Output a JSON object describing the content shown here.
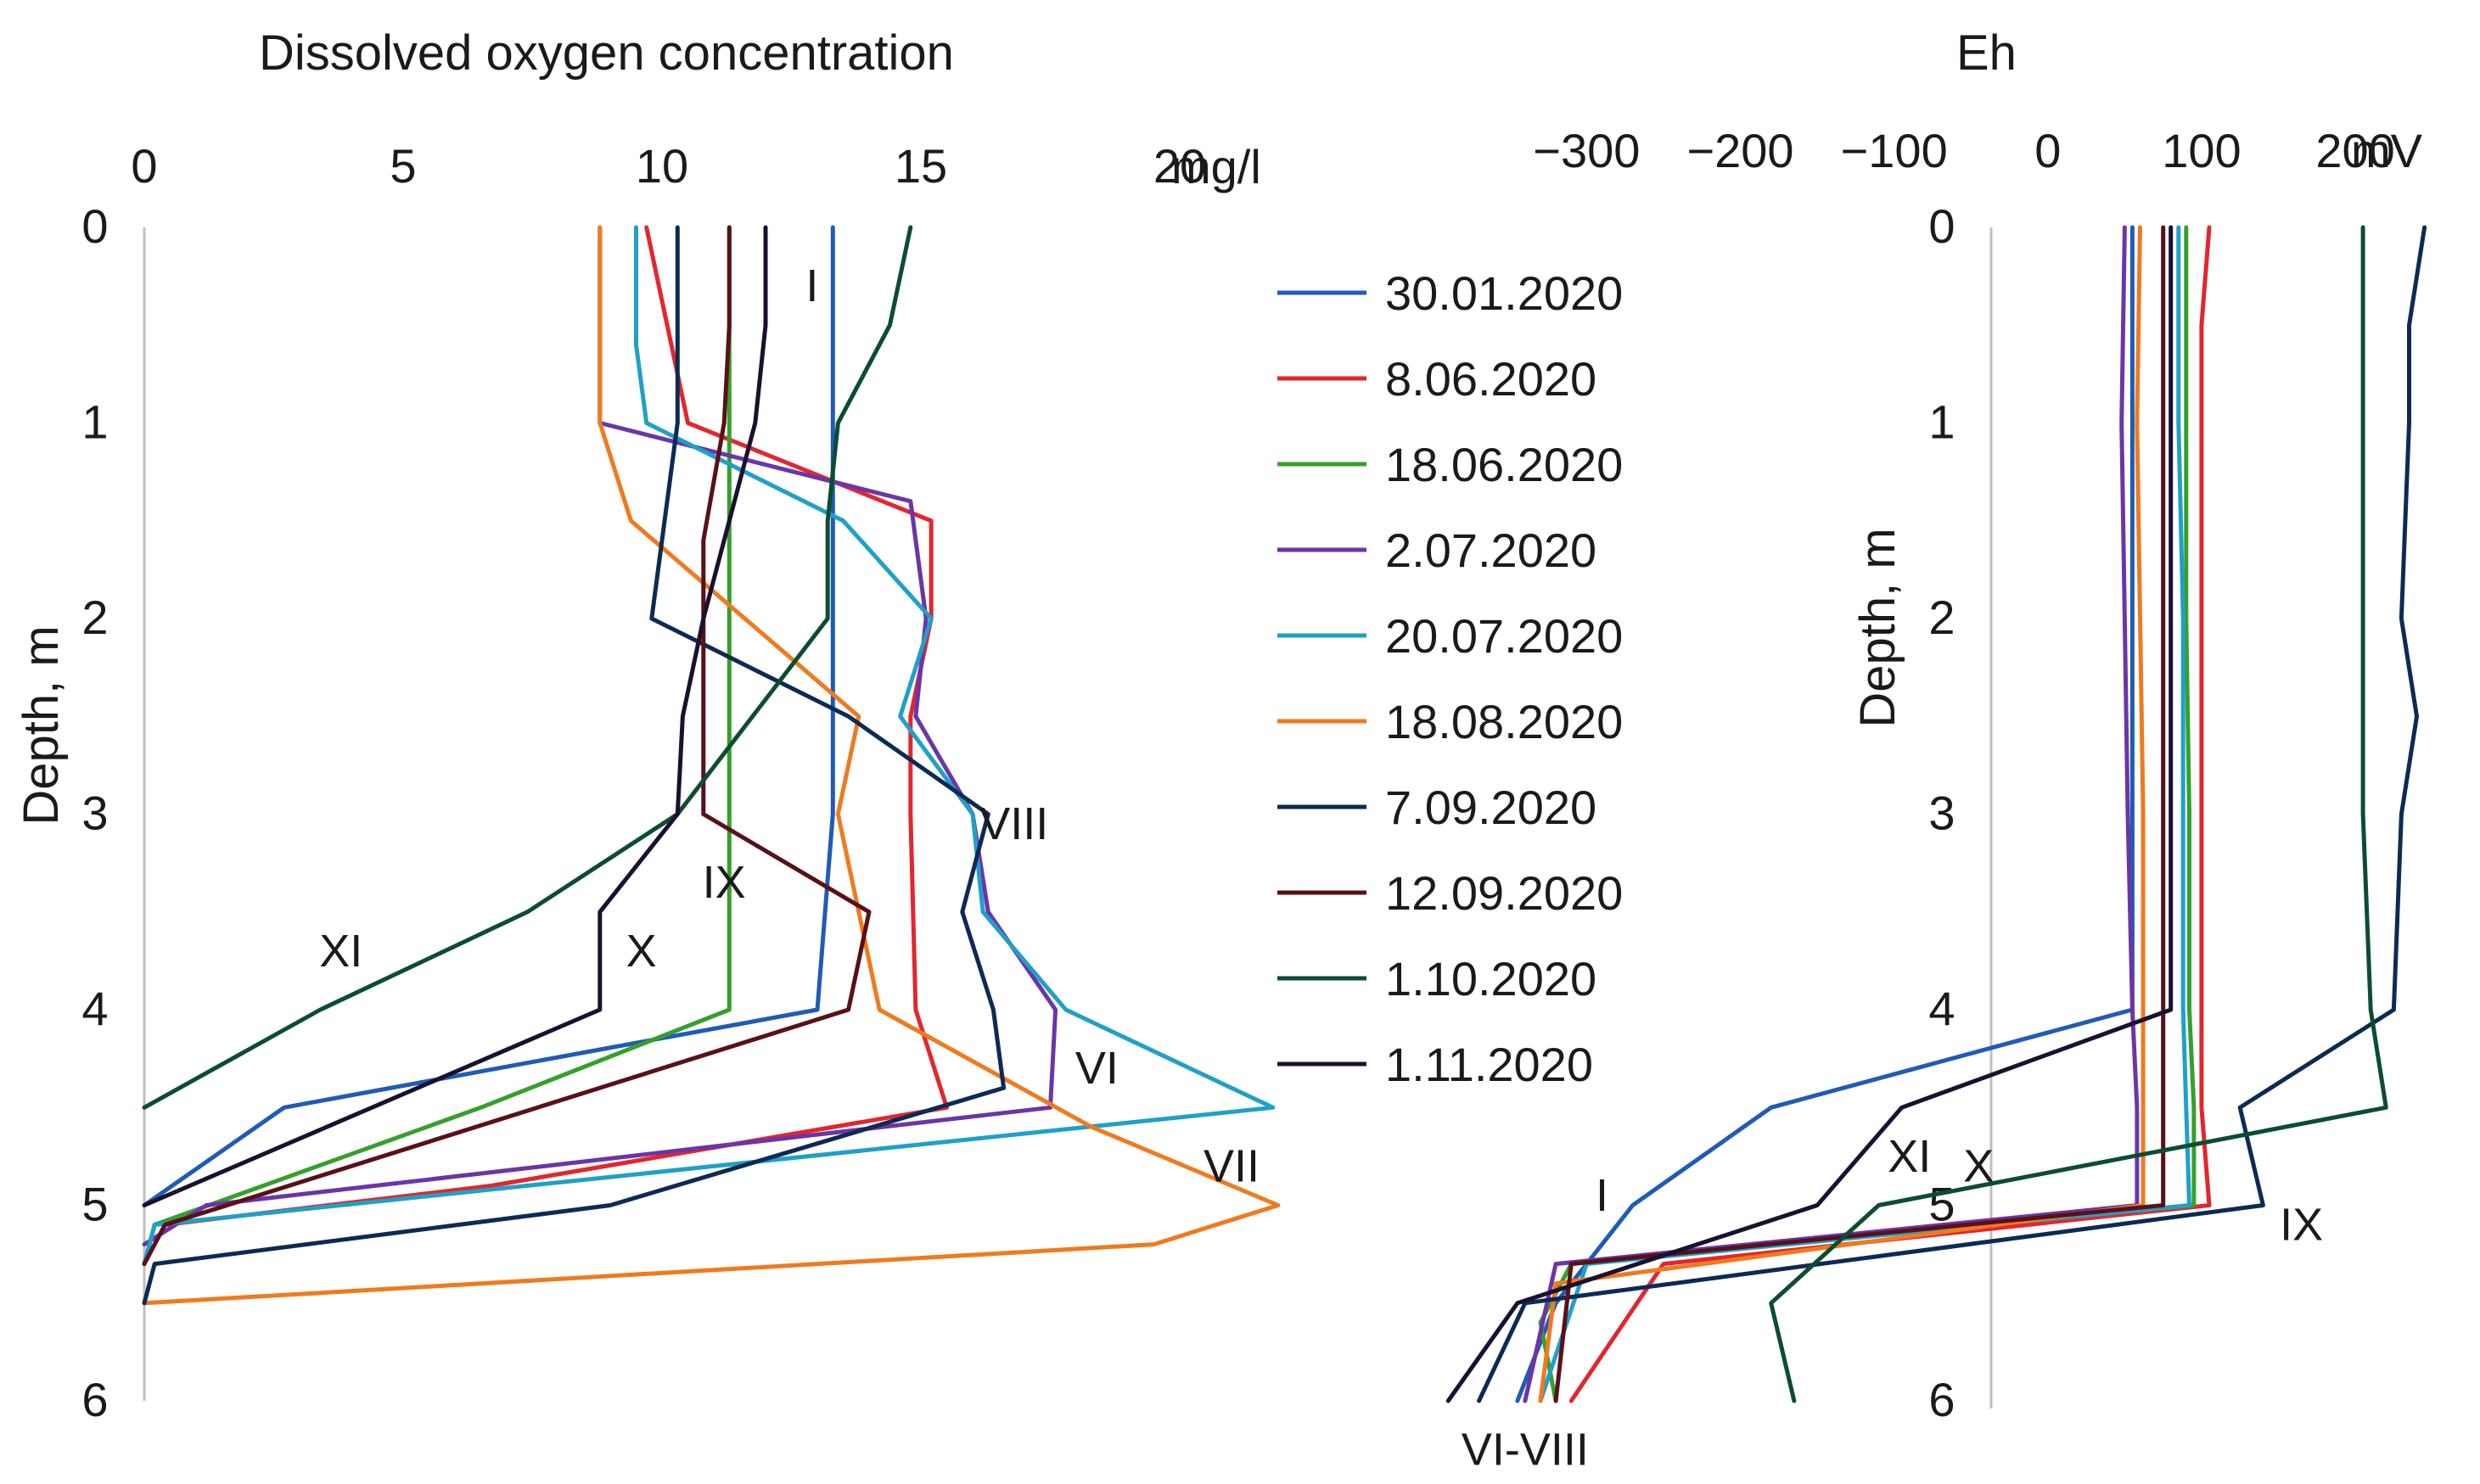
{
  "chart_data": [
    {
      "type": "line",
      "title": "Dissolved oxygen concentration",
      "xlabel": "mg/l",
      "ylabel": "Depth, m",
      "xlim": [
        0,
        20
      ],
      "ylim": [
        0,
        6
      ],
      "x_ticks": [
        "0",
        "5",
        "10",
        "15",
        "20"
      ],
      "x_unit_label": "mg/l",
      "y_ticks": [
        "0",
        "1",
        "2",
        "3",
        "4",
        "5",
        "6"
      ],
      "y_inverted": true,
      "annotations": [
        {
          "text": "I",
          "x": 12.9,
          "depth": 0.3
        },
        {
          "text": "VIII",
          "x": 16.8,
          "depth": 3.05
        },
        {
          "text": "IX",
          "x": 11.2,
          "depth": 3.35
        },
        {
          "text": "X",
          "x": 9.6,
          "depth": 3.7
        },
        {
          "text": "XI",
          "x": 3.8,
          "depth": 3.7
        },
        {
          "text": "VI",
          "x": 18.4,
          "depth": 4.3
        },
        {
          "text": "VII",
          "x": 21.0,
          "depth": 4.8
        }
      ],
      "series": [
        {
          "name": "30.01.2020",
          "color": "#1f5bb8",
          "points": [
            [
              13.3,
              0
            ],
            [
              13.3,
              1
            ],
            [
              13.3,
              2
            ],
            [
              13.3,
              3
            ],
            [
              13.0,
              4
            ],
            [
              2.7,
              4.5
            ],
            [
              0,
              5
            ]
          ]
        },
        {
          "name": "8.06.2020",
          "color": "#e3262e",
          "points": [
            [
              9.7,
              0
            ],
            [
              10.5,
              1
            ],
            [
              15.2,
              1.5
            ],
            [
              15.2,
              2
            ],
            [
              14.8,
              2.5
            ],
            [
              14.8,
              3
            ],
            [
              14.9,
              4
            ],
            [
              15.5,
              4.5
            ],
            [
              6.7,
              4.9
            ],
            [
              0.4,
              5.1
            ],
            [
              0,
              5.3
            ]
          ]
        },
        {
          "name": "18.06.2020",
          "color": "#35a02c",
          "points": [
            [
              11.3,
              0
            ],
            [
              11.3,
              1
            ],
            [
              11.3,
              2
            ],
            [
              11.3,
              3
            ],
            [
              11.3,
              4
            ],
            [
              6.5,
              4.5
            ],
            [
              0.2,
              5.1
            ],
            [
              0,
              5.3
            ]
          ]
        },
        {
          "name": "2.07.2020",
          "color": "#6b35a8",
          "points": [
            [
              8.8,
              0
            ],
            [
              8.8,
              1
            ],
            [
              14.8,
              1.4
            ],
            [
              15.1,
              2
            ],
            [
              14.9,
              2.5
            ],
            [
              16.0,
              3
            ],
            [
              16.3,
              3.5
            ],
            [
              17.6,
              4
            ],
            [
              17.5,
              4.5
            ],
            [
              1.2,
              5
            ],
            [
              0,
              5.2
            ]
          ]
        },
        {
          "name": "20.07.2020",
          "color": "#1fa0c8",
          "points": [
            [
              9.5,
              0
            ],
            [
              9.5,
              0.6
            ],
            [
              9.7,
              1
            ],
            [
              13.5,
              1.5
            ],
            [
              15.2,
              2
            ],
            [
              14.6,
              2.5
            ],
            [
              16.0,
              3
            ],
            [
              16.2,
              3.5
            ],
            [
              17.8,
              4
            ],
            [
              21.8,
              4.5
            ],
            [
              0.2,
              5.1
            ],
            [
              0,
              5.3
            ]
          ]
        },
        {
          "name": "18.08.2020",
          "color": "#f07a1e",
          "points": [
            [
              8.8,
              0
            ],
            [
              8.8,
              1
            ],
            [
              9.4,
              1.5
            ],
            [
              13.8,
              2.5
            ],
            [
              13.4,
              3
            ],
            [
              14.2,
              4
            ],
            [
              18.3,
              4.6
            ],
            [
              21.9,
              5
            ],
            [
              19.5,
              5.2
            ],
            [
              0,
              5.5
            ]
          ]
        },
        {
          "name": "7.09.2020",
          "color": "#0d2a55",
          "points": [
            [
              10.3,
              0
            ],
            [
              10.3,
              1
            ],
            [
              9.8,
              2
            ],
            [
              13.6,
              2.5
            ],
            [
              16.3,
              3
            ],
            [
              15.8,
              3.5
            ],
            [
              16.4,
              4
            ],
            [
              16.6,
              4.4
            ],
            [
              9.0,
              5
            ],
            [
              0.2,
              5.3
            ],
            [
              0,
              5.5
            ]
          ]
        },
        {
          "name": "12.09.2020",
          "color": "#5a1018",
          "points": [
            [
              11.3,
              0
            ],
            [
              11.3,
              0.5
            ],
            [
              11.2,
              1
            ],
            [
              10.8,
              1.6
            ],
            [
              10.8,
              3
            ],
            [
              14.0,
              3.5
            ],
            [
              13.6,
              4
            ],
            [
              0.4,
              5.1
            ],
            [
              0,
              5.3
            ]
          ]
        },
        {
          "name": "1.10.2020",
          "color": "#0c4d2f",
          "points": [
            [
              14.8,
              0
            ],
            [
              14.4,
              0.5
            ],
            [
              13.4,
              1
            ],
            [
              13.2,
              1.5
            ],
            [
              13.2,
              2
            ],
            [
              10.3,
              3
            ],
            [
              7.4,
              3.5
            ],
            [
              3.4,
              4
            ],
            [
              0,
              4.5
            ]
          ]
        },
        {
          "name": "1.11.2020",
          "color": "#1a1030",
          "points": [
            [
              12.0,
              0
            ],
            [
              12.0,
              0.5
            ],
            [
              11.8,
              1
            ],
            [
              10.8,
              2
            ],
            [
              10.4,
              2.5
            ],
            [
              10.3,
              3
            ],
            [
              8.8,
              3.5
            ],
            [
              8.8,
              4
            ],
            [
              0,
              5
            ]
          ]
        }
      ]
    },
    {
      "type": "line",
      "title": "Eh",
      "xlabel": "mV",
      "ylabel": "Depth, m",
      "xlim": [
        -420,
        280
      ],
      "ylim": [
        0,
        6
      ],
      "x_ticks": [
        "−300",
        "−200",
        "−100",
        "0",
        "100",
        "200"
      ],
      "x_unit_label": "mV",
      "y_ticks": [
        "0",
        "1",
        "2",
        "3",
        "4",
        "5",
        "6"
      ],
      "y_inverted": true,
      "annotations": [
        {
          "text": "XI",
          "x": -90,
          "depth": 4.75
        },
        {
          "text": "X",
          "x": -45,
          "depth": 4.8
        },
        {
          "text": "I",
          "x": -290,
          "depth": 4.95
        },
        {
          "text": "IX",
          "x": 165,
          "depth": 5.1
        },
        {
          "text": "VI-VIII",
          "x": -340,
          "depth": 6.25
        }
      ],
      "series": [
        {
          "name": "30.01.2020",
          "color": "#1f5bb8",
          "points": [
            [
              55,
              0
            ],
            [
              55,
              1
            ],
            [
              55,
              2
            ],
            [
              55,
              3
            ],
            [
              55,
              4
            ],
            [
              -180,
              4.5
            ],
            [
              -270,
              5
            ],
            [
              -320,
              5.5
            ],
            [
              -345,
              6
            ]
          ]
        },
        {
          "name": "8.06.2020",
          "color": "#e3262e",
          "points": [
            [
              105,
              0
            ],
            [
              100,
              0.5
            ],
            [
              100,
              1
            ],
            [
              100,
              2
            ],
            [
              100,
              3
            ],
            [
              100,
              4
            ],
            [
              100,
              4.5
            ],
            [
              105,
              5
            ],
            [
              -250,
              5.3
            ],
            [
              -310,
              6
            ]
          ]
        },
        {
          "name": "18.06.2020",
          "color": "#35a02c",
          "points": [
            [
              90,
              0
            ],
            [
              90,
              1
            ],
            [
              90,
              2
            ],
            [
              92,
              3
            ],
            [
              92,
              4
            ],
            [
              95,
              4.5
            ],
            [
              95,
              5
            ],
            [
              -310,
              5.3
            ],
            [
              -330,
              5.6
            ],
            [
              -320,
              6
            ]
          ]
        },
        {
          "name": "2.07.2020",
          "color": "#6b35a8",
          "points": [
            [
              50,
              0
            ],
            [
              48,
              1
            ],
            [
              50,
              2
            ],
            [
              52,
              3
            ],
            [
              55,
              4
            ],
            [
              58,
              4.5
            ],
            [
              58,
              5
            ],
            [
              -320,
              5.3
            ],
            [
              -340,
              6
            ]
          ]
        },
        {
          "name": "20.07.2020",
          "color": "#1fa0c8",
          "points": [
            [
              85,
              0
            ],
            [
              85,
              1
            ],
            [
              88,
              2
            ],
            [
              88,
              3
            ],
            [
              88,
              4
            ],
            [
              90,
              4.5
            ],
            [
              92,
              5
            ],
            [
              -300,
              5.3
            ],
            [
              -330,
              6
            ]
          ]
        },
        {
          "name": "18.08.2020",
          "color": "#f07a1e",
          "points": [
            [
              60,
              0
            ],
            [
              58,
              1
            ],
            [
              60,
              2
            ],
            [
              62,
              3
            ],
            [
              62,
              4
            ],
            [
              62,
              4.5
            ],
            [
              62,
              5
            ],
            [
              -320,
              5.4
            ],
            [
              -330,
              6
            ]
          ]
        },
        {
          "name": "7.09.2020",
          "color": "#0d2a55",
          "points": [
            [
              245,
              0
            ],
            [
              235,
              0.5
            ],
            [
              235,
              1
            ],
            [
              230,
              2
            ],
            [
              240,
              2.5
            ],
            [
              230,
              3
            ],
            [
              225,
              4
            ],
            [
              125,
              4.5
            ],
            [
              140,
              5
            ],
            [
              -340,
              5.5
            ],
            [
              -370,
              6
            ]
          ]
        },
        {
          "name": "12.09.2020",
          "color": "#5a1018",
          "points": [
            [
              75,
              0
            ],
            [
              75,
              1
            ],
            [
              75,
              2
            ],
            [
              75,
              3
            ],
            [
              75,
              4
            ],
            [
              75,
              4.5
            ],
            [
              75,
              5
            ],
            [
              -310,
              5.3
            ],
            [
              -320,
              6
            ]
          ]
        },
        {
          "name": "1.10.2020",
          "color": "#0c4d2f",
          "points": [
            [
              205,
              0
            ],
            [
              205,
              1
            ],
            [
              205,
              2
            ],
            [
              205,
              3
            ],
            [
              210,
              4
            ],
            [
              220,
              4.5
            ],
            [
              -110,
              5
            ],
            [
              -180,
              5.5
            ],
            [
              -165,
              6
            ]
          ]
        },
        {
          "name": "1.11.2020",
          "color": "#1a1030",
          "points": [
            [
              80,
              0
            ],
            [
              80,
              1
            ],
            [
              80,
              2
            ],
            [
              80,
              3
            ],
            [
              80,
              4
            ],
            [
              -95,
              4.5
            ],
            [
              -150,
              5
            ],
            [
              -345,
              5.5
            ],
            [
              -390,
              6
            ]
          ]
        }
      ]
    }
  ]
}
